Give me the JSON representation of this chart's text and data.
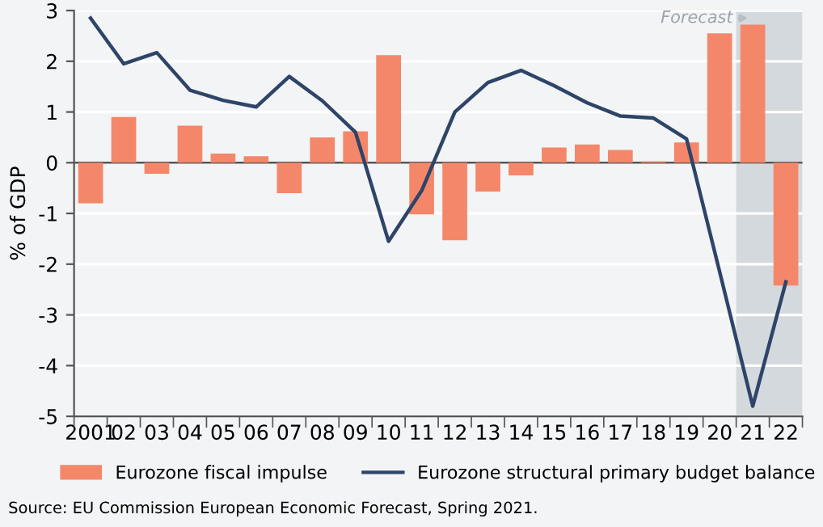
{
  "chart_data": {
    "type": "bar",
    "ylabel": "% of GDP",
    "categories": [
      "2001",
      "02",
      "03",
      "04",
      "05",
      "06",
      "07",
      "08",
      "09",
      "10",
      "11",
      "12",
      "13",
      "14",
      "15",
      "16",
      "17",
      "18",
      "19",
      "20",
      "21",
      "22"
    ],
    "series": [
      {
        "name": "Eurozone fiscal impulse",
        "color": "#f4876a",
        "values": [
          -0.8,
          0.9,
          -0.22,
          0.73,
          0.18,
          0.13,
          -0.6,
          0.5,
          0.62,
          2.12,
          -1.02,
          -1.53,
          -0.57,
          -0.25,
          0.3,
          0.36,
          0.25,
          0.03,
          0.4,
          2.55,
          2.72,
          -2.42
        ]
      },
      {
        "name": "Eurozone structural primary budget balance",
        "type": "line",
        "color": "#2e4468",
        "values": [
          2.85,
          1.95,
          2.17,
          1.43,
          1.23,
          1.1,
          1.7,
          1.22,
          0.6,
          -1.55,
          -0.55,
          1.0,
          1.58,
          1.82,
          1.52,
          1.18,
          0.92,
          0.88,
          0.47,
          -2.15,
          -4.8,
          -2.35
        ]
      }
    ],
    "ylim": [
      -5,
      3
    ],
    "yticks": [
      -5,
      -4,
      -3,
      -2,
      -1,
      0,
      1,
      2,
      3
    ],
    "bands": [
      {
        "axis": "x",
        "from": "21",
        "to": "22",
        "label": "Forecast",
        "color": "#d3d9dd"
      }
    ],
    "grid": "y",
    "legend": "bottom",
    "marker": "none",
    "line_style": "solid",
    "annotations": [
      "Source: EU Commission European Economic Forecast, Spring 2021."
    ]
  }
}
